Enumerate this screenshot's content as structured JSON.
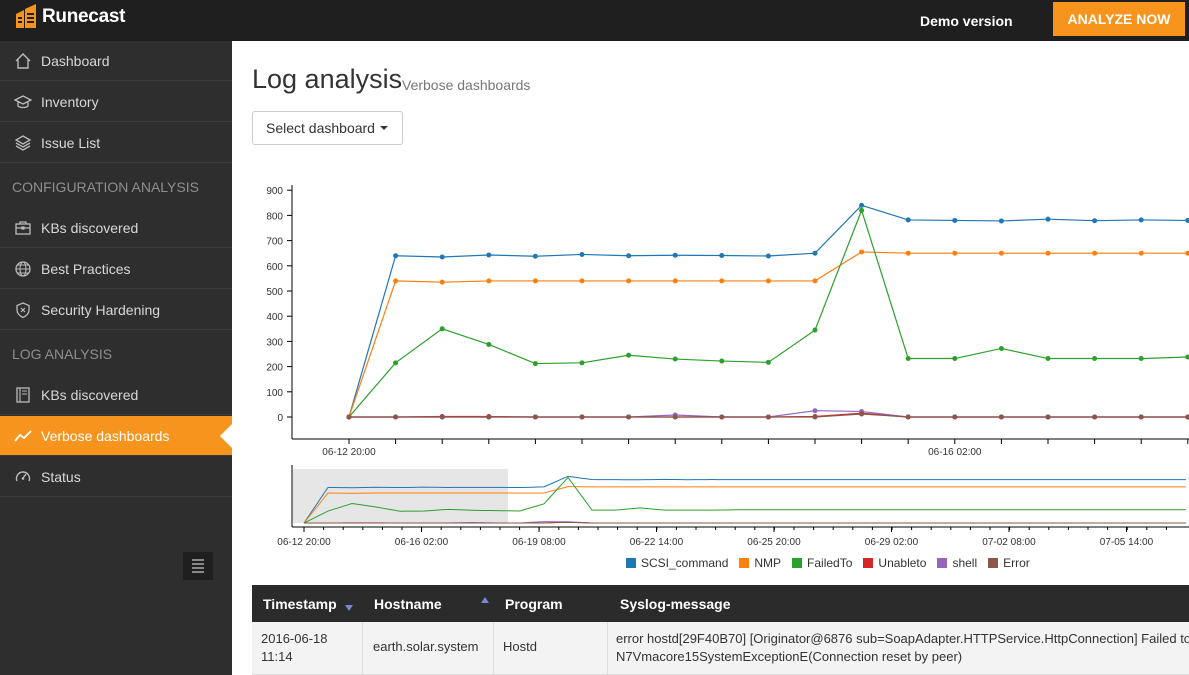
{
  "brand": {
    "name": "Runecast"
  },
  "header": {
    "demo_label": "Demo version",
    "analyze_label": "ANALYZE NOW"
  },
  "sidebar": {
    "items": [
      {
        "label": "Dashboard",
        "icon": "home-icon"
      },
      {
        "label": "Inventory",
        "icon": "inventory-icon"
      },
      {
        "label": "Issue List",
        "icon": "layers-icon"
      },
      {
        "label": "KBs discovered",
        "icon": "briefcase-icon"
      },
      {
        "label": "Best Practices",
        "icon": "globe-icon"
      },
      {
        "label": "Security Hardening",
        "icon": "shield-icon"
      },
      {
        "label": "KBs discovered",
        "icon": "book-icon"
      },
      {
        "label": "Verbose dashboards",
        "icon": "line-chart-icon",
        "active": true
      },
      {
        "label": "Status",
        "icon": "gauge-icon"
      }
    ],
    "sections": {
      "config": "CONFIGURATION ANALYSIS",
      "log": "LOG ANALYSIS"
    }
  },
  "main": {
    "title": "Log analysis",
    "subtitle": "Verbose dashboards",
    "select_label": "Select dashboard"
  },
  "chart_data": {
    "type": "line",
    "yticks": [
      "0",
      "100",
      "200",
      "300",
      "400",
      "500",
      "600",
      "700",
      "800",
      "900"
    ],
    "ylim": [
      0,
      900
    ],
    "xtick_labels": [
      "06-12 20:00",
      "06-16 02:00"
    ],
    "overview_xtick_labels": [
      "06-12 20:00",
      "06-16 02:00",
      "06-19 08:00",
      "06-22 14:00",
      "06-25 20:00",
      "06-29 02:00",
      "07-02 08:00",
      "07-05 14:00"
    ],
    "legend_placement": "bottom",
    "series": [
      {
        "name": "SCSI_command",
        "color": "#1f77b4",
        "values": [
          0,
          640,
          635,
          643,
          638,
          645,
          640,
          642,
          641,
          639,
          650,
          840,
          782,
          780,
          778,
          785,
          779,
          782,
          780
        ]
      },
      {
        "name": "NMP",
        "color": "#ff7f0e",
        "values": [
          0,
          540,
          535,
          540,
          540,
          540,
          540,
          540,
          540,
          540,
          540,
          655,
          650,
          650,
          650,
          650,
          650,
          650,
          650
        ]
      },
      {
        "name": "FailedTo",
        "color": "#2ca02c",
        "values": [
          0,
          215,
          350,
          288,
          212,
          215,
          245,
          230,
          222,
          217,
          345,
          820,
          232,
          232,
          272,
          232,
          232,
          232,
          238
        ]
      },
      {
        "name": "Unableto",
        "color": "#d62728",
        "values": [
          0,
          0,
          2,
          2,
          0,
          0,
          0,
          0,
          0,
          0,
          2,
          15,
          0,
          0,
          0,
          0,
          0,
          0,
          0
        ]
      },
      {
        "name": "shell",
        "color": "#9467bd",
        "values": [
          0,
          0,
          0,
          0,
          0,
          0,
          0,
          8,
          0,
          0,
          25,
          22,
          0,
          0,
          0,
          0,
          0,
          0,
          0
        ]
      },
      {
        "name": "Error",
        "color": "#8c564b",
        "values": [
          0,
          0,
          0,
          0,
          0,
          0,
          0,
          0,
          0,
          0,
          0,
          12,
          0,
          0,
          0,
          0,
          0,
          0,
          0
        ]
      }
    ]
  },
  "table": {
    "headers": [
      "Timestamp",
      "Hostname",
      "Program",
      "Syslog-message"
    ],
    "rows": [
      {
        "timestamp_line1": "2016-06-18",
        "timestamp_line2": "11:14",
        "hostname": "earth.solar.system",
        "program": "Hostd",
        "message_line1": "error hostd[29F40B70] [Originator@6876 sub=SoapAdapter.HTTPService.HttpConnection] Failed to",
        "message_line2": "N7Vmacore15SystemExceptionE(Connection reset by peer)"
      }
    ]
  }
}
